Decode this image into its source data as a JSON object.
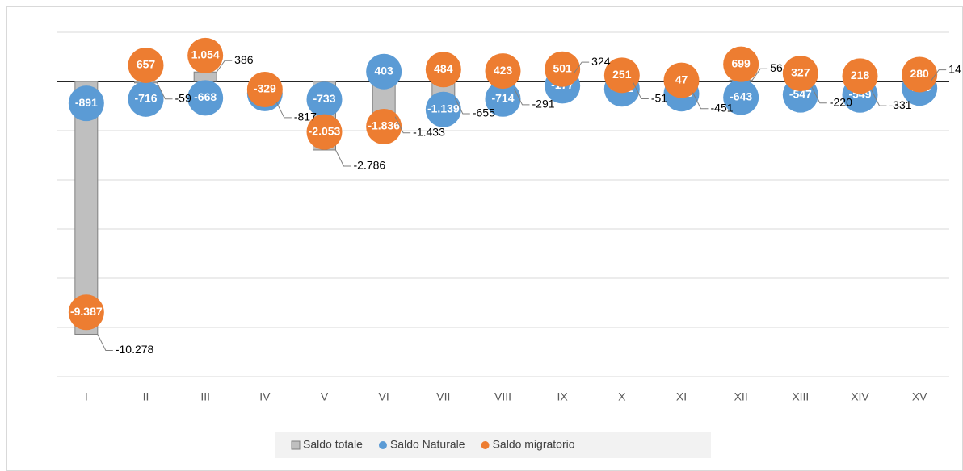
{
  "chart_data": {
    "type": "bar-bubble",
    "categories": [
      "I",
      "II",
      "III",
      "IV",
      "V",
      "VI",
      "VII",
      "VIII",
      "IX",
      "X",
      "XI",
      "XII",
      "XIII",
      "XIV",
      "XV"
    ],
    "ylim": [
      -12000,
      2000
    ],
    "yticks": [
      -12000,
      -10000,
      -8000,
      -6000,
      -4000,
      -2000,
      0,
      2000
    ],
    "grid": true,
    "series": [
      {
        "name": "Saldo totale",
        "color": "#bfbfbf",
        "values": [
          -10278,
          -59,
          386,
          -817,
          -2786,
          -1433,
          -655,
          -291,
          324,
          -51,
          -451,
          56,
          -220,
          -331,
          14
        ],
        "value_labels": [
          "-10.278",
          "-59",
          "386",
          "-817",
          "-2.786",
          "-1.433",
          "-655",
          "-291",
          "324",
          "-51",
          "-451",
          "56",
          "-220",
          "-331",
          "14"
        ]
      },
      {
        "name": "Saldo Naturale",
        "color": "#5b9bd5",
        "values": [
          -891,
          -716,
          -668,
          -488,
          -733,
          403,
          -1139,
          -714,
          -177,
          -302,
          -498,
          -643,
          -547,
          -549,
          -266
        ],
        "value_labels": [
          "-891",
          "-716",
          "-668",
          "-488",
          "-733",
          "403",
          "-1.139",
          "-714",
          "-177",
          "-302",
          "-498",
          "-643",
          "-547",
          "-549",
          "-266"
        ]
      },
      {
        "name": "Saldo migratorio",
        "color": "#ed7d31",
        "values": [
          -9387,
          657,
          1054,
          -329,
          -2053,
          -1836,
          484,
          423,
          501,
          251,
          47,
          699,
          327,
          218,
          280
        ],
        "value_labels": [
          "-9.387",
          "657",
          "1.054",
          "-329",
          "-2.053",
          "-1.836",
          "484",
          "423",
          "501",
          "251",
          "47",
          "699",
          "327",
          "218",
          "280"
        ]
      }
    ]
  }
}
